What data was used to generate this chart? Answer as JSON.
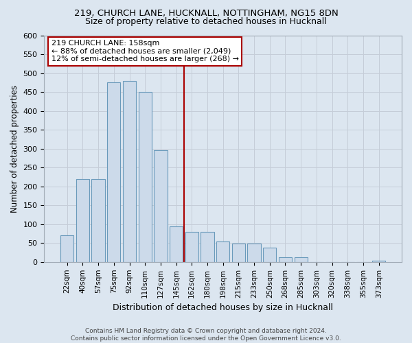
{
  "title1": "219, CHURCH LANE, HUCKNALL, NOTTINGHAM, NG15 8DN",
  "title2": "Size of property relative to detached houses in Hucknall",
  "xlabel": "Distribution of detached houses by size in Hucknall",
  "ylabel": "Number of detached properties",
  "categories": [
    "22sqm",
    "40sqm",
    "57sqm",
    "75sqm",
    "92sqm",
    "110sqm",
    "127sqm",
    "145sqm",
    "162sqm",
    "180sqm",
    "198sqm",
    "215sqm",
    "233sqm",
    "250sqm",
    "268sqm",
    "285sqm",
    "303sqm",
    "320sqm",
    "338sqm",
    "355sqm",
    "373sqm"
  ],
  "values": [
    70,
    220,
    220,
    475,
    480,
    450,
    295,
    95,
    80,
    80,
    55,
    48,
    48,
    38,
    13,
    13,
    0,
    0,
    0,
    0,
    3
  ],
  "bar_color": "#ccdaea",
  "bar_edge_color": "#6a9abb",
  "vline_index": 8,
  "vline_color": "#aa0000",
  "annotation_text": "219 CHURCH LANE: 158sqm\n← 88% of detached houses are smaller (2,049)\n12% of semi-detached houses are larger (268) →",
  "annotation_box_color": "#ffffff",
  "annotation_box_edge": "#aa0000",
  "grid_color": "#c5cdd8",
  "background_color": "#dce6f0",
  "footer": "Contains HM Land Registry data © Crown copyright and database right 2024.\nContains public sector information licensed under the Open Government Licence v3.0.",
  "ylim": [
    0,
    600
  ],
  "yticks": [
    0,
    50,
    100,
    150,
    200,
    250,
    300,
    350,
    400,
    450,
    500,
    550,
    600
  ],
  "title1_fontsize": 9.5,
  "title2_fontsize": 9,
  "ylabel_fontsize": 8.5,
  "xlabel_fontsize": 9
}
